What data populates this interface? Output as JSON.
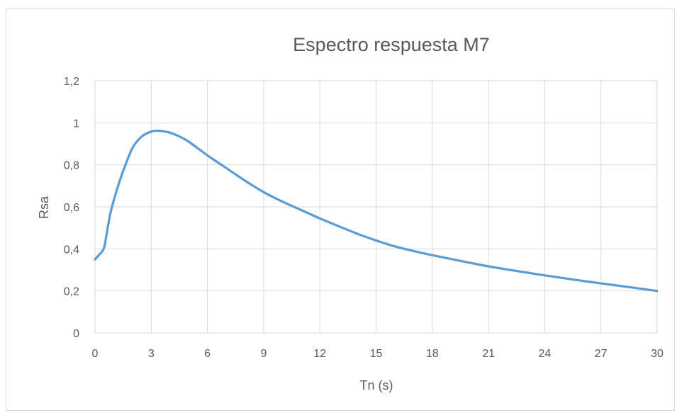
{
  "chart_data": {
    "type": "line",
    "title": "Espectro respuesta M7",
    "xlabel": "Tn (s)",
    "ylabel": "Rsa",
    "xlim": [
      0,
      30
    ],
    "ylim": [
      0,
      1.2
    ],
    "xticks": [
      0,
      3,
      6,
      9,
      12,
      15,
      18,
      21,
      24,
      27,
      30
    ],
    "xtick_labels": [
      "0",
      "3",
      "6",
      "9",
      "12",
      "15",
      "18",
      "21",
      "24",
      "27",
      "30"
    ],
    "yticks": [
      0,
      0.2,
      0.4,
      0.6,
      0.8,
      1,
      1.2
    ],
    "ytick_labels": [
      "0",
      "0,2",
      "0,4",
      "0,6",
      "0,8",
      "1",
      "1,2"
    ],
    "grid": true,
    "legend": "none",
    "series": [
      {
        "color": "#5b9bd5",
        "x": [
          0,
          0.2,
          0.4,
          0.5,
          0.6,
          0.8,
          1,
          1.2,
          1.5,
          2,
          2.5,
          3,
          3.3,
          3.6,
          4,
          4.5,
          5,
          6,
          7,
          8,
          9,
          10,
          11,
          12,
          13,
          14,
          15,
          16,
          17,
          18,
          19,
          20,
          21,
          22,
          23,
          24,
          25,
          26,
          27,
          28,
          29,
          30
        ],
        "y": [
          0.35,
          0.37,
          0.39,
          0.41,
          0.46,
          0.56,
          0.63,
          0.69,
          0.77,
          0.88,
          0.935,
          0.958,
          0.962,
          0.96,
          0.953,
          0.935,
          0.91,
          0.845,
          0.785,
          0.725,
          0.67,
          0.625,
          0.585,
          0.545,
          0.508,
          0.472,
          0.44,
          0.412,
          0.39,
          0.37,
          0.352,
          0.334,
          0.317,
          0.302,
          0.288,
          0.274,
          0.261,
          0.248,
          0.236,
          0.224,
          0.212,
          0.2
        ]
      }
    ]
  }
}
